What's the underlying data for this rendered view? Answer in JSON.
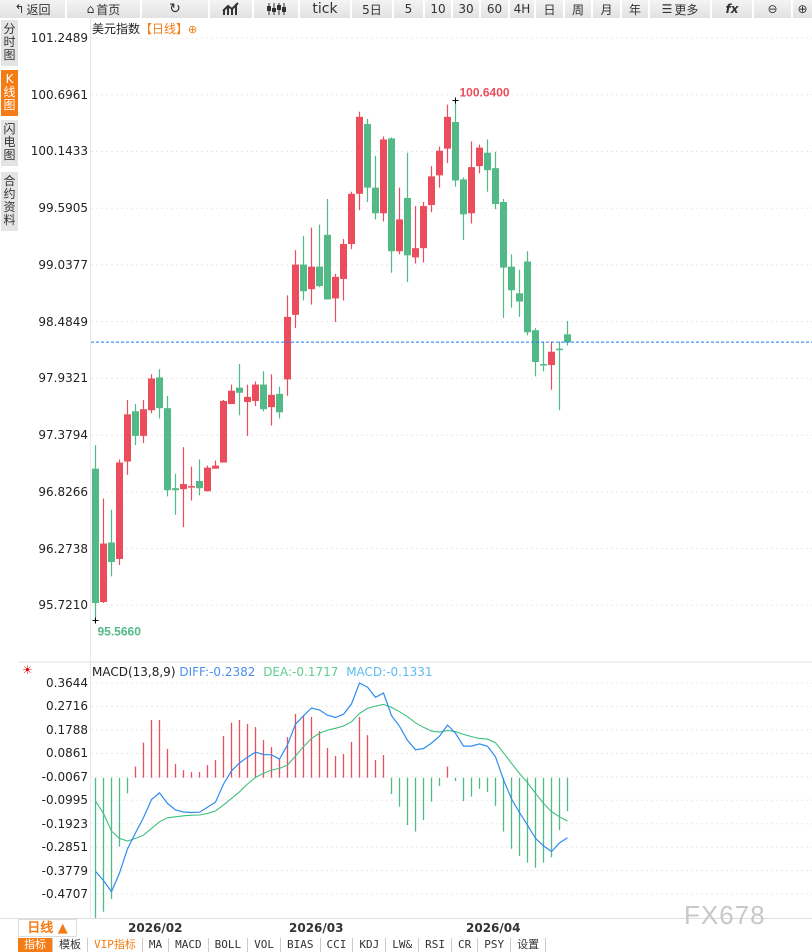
{
  "toolbar": {
    "back": "返回",
    "home": "首页",
    "tick": "tick",
    "d5": "5日",
    "m5": "5",
    "m10": "10",
    "m30": "30",
    "m60": "60",
    "h4": "4H",
    "day": "日",
    "week": "周",
    "month": "月",
    "year": "年",
    "more": "更多",
    "fx": "fx"
  },
  "side_tabs": [
    "分时图",
    "K线图",
    "闪电图",
    "合约资料"
  ],
  "chart_title": {
    "name": "美元指数",
    "period": "【日线】",
    "add": "⊕"
  },
  "macd_header": {
    "label": "MACD(13,8,9)",
    "diff": "DIFF:-0.2382",
    "dea": "DEA:-0.1717",
    "macd": "MACD:-0.1331"
  },
  "colors": {
    "up": "#eb4d5c",
    "down": "#52b987",
    "diff": "#2f8cf0",
    "dea": "#3cc07c",
    "accent": "#f57c14",
    "last_line": "#1a7cf0"
  },
  "period_button": "日线 ▲",
  "x_dates": [
    "2026/02",
    "2026/03",
    "2026/04"
  ],
  "bottom_tabs": [
    "指标",
    "模板",
    "VIP指标",
    "MA",
    "MACD",
    "BOLL",
    "VOL",
    "BIAS",
    "CCI",
    "KDJ",
    "LW&",
    "RSI",
    "CR",
    "PSY",
    "设置"
  ],
  "watermark": "FX678",
  "chart_data": [
    {
      "type": "candlestick",
      "title": "美元指数【日线】",
      "y_ticks": [
        "101.2489",
        "100.6961",
        "100.1433",
        "99.5905",
        "99.0377",
        "98.4849",
        "97.9321",
        "97.3794",
        "96.8266",
        "96.2738",
        "95.7210"
      ],
      "ylim": [
        95.721,
        101.2489
      ],
      "high_label": "100.6400",
      "low_label": "95.5660",
      "last_price": 98.284,
      "date_ticks": {
        "2026/02": 4,
        "2026/03": 24,
        "2026/04": 46
      },
      "ohlc": [
        [
          97.05,
          97.28,
          95.57,
          95.74
        ],
        [
          95.75,
          96.76,
          95.74,
          96.32
        ],
        [
          96.33,
          96.65,
          96.0,
          96.14
        ],
        [
          96.17,
          97.14,
          96.11,
          97.11
        ],
        [
          97.12,
          97.72,
          96.99,
          97.58
        ],
        [
          97.61,
          97.68,
          97.28,
          97.37
        ],
        [
          97.37,
          97.72,
          97.3,
          97.63
        ],
        [
          97.62,
          97.97,
          97.59,
          97.93
        ],
        [
          97.94,
          98.02,
          97.54,
          97.64
        ],
        [
          97.64,
          97.76,
          96.78,
          96.84
        ],
        [
          96.86,
          97.0,
          96.6,
          96.84
        ],
        [
          96.85,
          97.26,
          96.48,
          96.9
        ],
        [
          96.87,
          97.07,
          96.74,
          96.88
        ],
        [
          96.93,
          97.14,
          96.79,
          96.86
        ],
        [
          96.83,
          97.08,
          96.83,
          97.06
        ],
        [
          97.05,
          97.13,
          97.05,
          97.08
        ],
        [
          97.11,
          97.72,
          97.11,
          97.71
        ],
        [
          97.68,
          97.87,
          97.68,
          97.81
        ],
        [
          97.84,
          98.07,
          97.57,
          97.79
        ],
        [
          97.7,
          97.87,
          97.37,
          97.75
        ],
        [
          97.71,
          97.9,
          97.66,
          97.87
        ],
        [
          97.87,
          98.0,
          97.61,
          97.63
        ],
        [
          97.65,
          97.97,
          97.47,
          97.77
        ],
        [
          97.78,
          97.85,
          97.54,
          97.6
        ],
        [
          97.92,
          98.74,
          97.76,
          98.53
        ],
        [
          98.55,
          99.18,
          98.42,
          99.04
        ],
        [
          99.04,
          99.32,
          98.69,
          98.78
        ],
        [
          98.8,
          99.4,
          98.65,
          99.02
        ],
        [
          99.02,
          99.43,
          98.82,
          98.83
        ],
        [
          99.33,
          99.68,
          98.7,
          98.7
        ],
        [
          98.71,
          98.95,
          98.48,
          98.92
        ],
        [
          98.9,
          99.29,
          98.69,
          99.24
        ],
        [
          99.24,
          99.75,
          99.19,
          99.73
        ],
        [
          99.73,
          100.53,
          99.57,
          100.48
        ],
        [
          100.41,
          100.46,
          99.65,
          99.79
        ],
        [
          99.79,
          100.1,
          99.48,
          99.54
        ],
        [
          99.54,
          100.29,
          99.46,
          100.26
        ],
        [
          100.27,
          100.28,
          98.96,
          99.17
        ],
        [
          99.17,
          99.79,
          99.14,
          99.48
        ],
        [
          99.69,
          100.13,
          98.87,
          99.13
        ],
        [
          99.11,
          99.61,
          99.05,
          99.2
        ],
        [
          99.2,
          99.65,
          99.06,
          99.61
        ],
        [
          99.62,
          100.0,
          99.55,
          99.9
        ],
        [
          99.91,
          100.19,
          99.79,
          100.15
        ],
        [
          100.17,
          100.6,
          100.03,
          100.48
        ],
        [
          100.43,
          100.64,
          99.8,
          99.86
        ],
        [
          99.87,
          99.89,
          99.28,
          99.53
        ],
        [
          99.54,
          100.24,
          99.44,
          99.99
        ],
        [
          100.0,
          100.21,
          99.93,
          100.18
        ],
        [
          100.13,
          100.26,
          99.75,
          99.96
        ],
        [
          99.98,
          100.14,
          99.58,
          99.63
        ],
        [
          99.65,
          99.68,
          98.52,
          99.01
        ],
        [
          99.02,
          99.14,
          98.62,
          98.79
        ],
        [
          98.76,
          98.99,
          98.53,
          98.68
        ],
        [
          99.07,
          99.17,
          98.35,
          98.38
        ],
        [
          98.4,
          98.42,
          97.95,
          98.09
        ],
        [
          98.07,
          98.29,
          98.0,
          98.06
        ],
        [
          98.06,
          98.29,
          97.82,
          98.19
        ],
        [
          98.22,
          98.29,
          97.62,
          98.21
        ],
        [
          98.36,
          98.49,
          98.25,
          98.28
        ]
      ]
    },
    {
      "type": "macd",
      "title": "MACD(13,8,9)",
      "y_ticks": [
        "0.3644",
        "0.2716",
        "0.1788",
        "0.0861",
        "-0.0067",
        "-0.0995",
        "-0.1923",
        "-0.2851",
        "-0.3779",
        "-0.4707"
      ],
      "macd": [
        -0.558,
        -0.532,
        -0.481,
        -0.274,
        -0.062,
        0.044,
        0.139,
        0.229,
        0.229,
        0.114,
        0.054,
        0.03,
        0.022,
        0.022,
        0.05,
        0.07,
        0.165,
        0.218,
        0.229,
        0.213,
        0.201,
        0.149,
        0.122,
        0.073,
        0.161,
        0.253,
        0.245,
        0.241,
        0.185,
        0.118,
        0.086,
        0.094,
        0.142,
        0.241,
        0.169,
        0.07,
        0.09,
        -0.065,
        -0.115,
        -0.188,
        -0.214,
        -0.168,
        -0.095,
        -0.033,
        0.044,
        -0.013,
        -0.093,
        -0.075,
        -0.044,
        -0.057,
        -0.112,
        -0.214,
        -0.282,
        -0.311,
        -0.337,
        -0.357,
        -0.337,
        -0.316,
        -0.208,
        -0.133
      ],
      "dea": [
        -0.093,
        -0.142,
        -0.212,
        -0.241,
        -0.251,
        -0.241,
        -0.228,
        -0.201,
        -0.175,
        -0.159,
        -0.155,
        -0.151,
        -0.149,
        -0.148,
        -0.142,
        -0.132,
        -0.108,
        -0.082,
        -0.056,
        -0.025,
        0.001,
        0.017,
        0.03,
        0.037,
        0.05,
        0.086,
        0.123,
        0.156,
        0.176,
        0.189,
        0.196,
        0.205,
        0.222,
        0.255,
        0.275,
        0.284,
        0.291,
        0.279,
        0.262,
        0.242,
        0.218,
        0.2,
        0.185,
        0.181,
        0.187,
        0.183,
        0.172,
        0.163,
        0.156,
        0.153,
        0.139,
        0.099,
        0.057,
        0.017,
        -0.02,
        -0.062,
        -0.102,
        -0.135,
        -0.155,
        -0.172
      ]
    }
  ]
}
